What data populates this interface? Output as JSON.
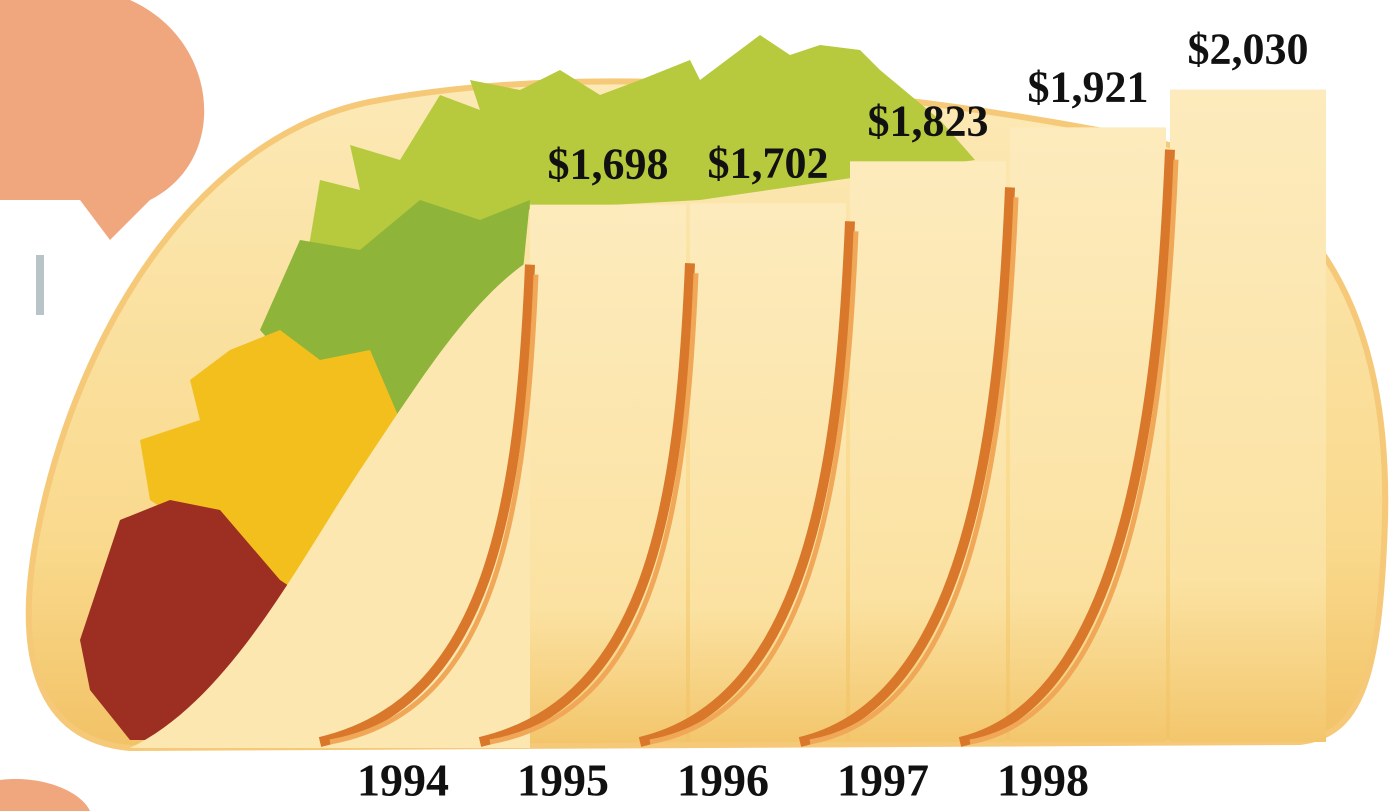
{
  "chart_data": {
    "type": "bar",
    "categories": [
      "1994",
      "1995",
      "1996",
      "1997",
      "1998"
    ],
    "values": [
      1698,
      1702,
      1823,
      1921,
      2030
    ],
    "value_labels": [
      "$1,698",
      "$1,702",
      "$1,823",
      "$1,921",
      "$2,030"
    ],
    "color": "#fbe3a6"
  }
}
